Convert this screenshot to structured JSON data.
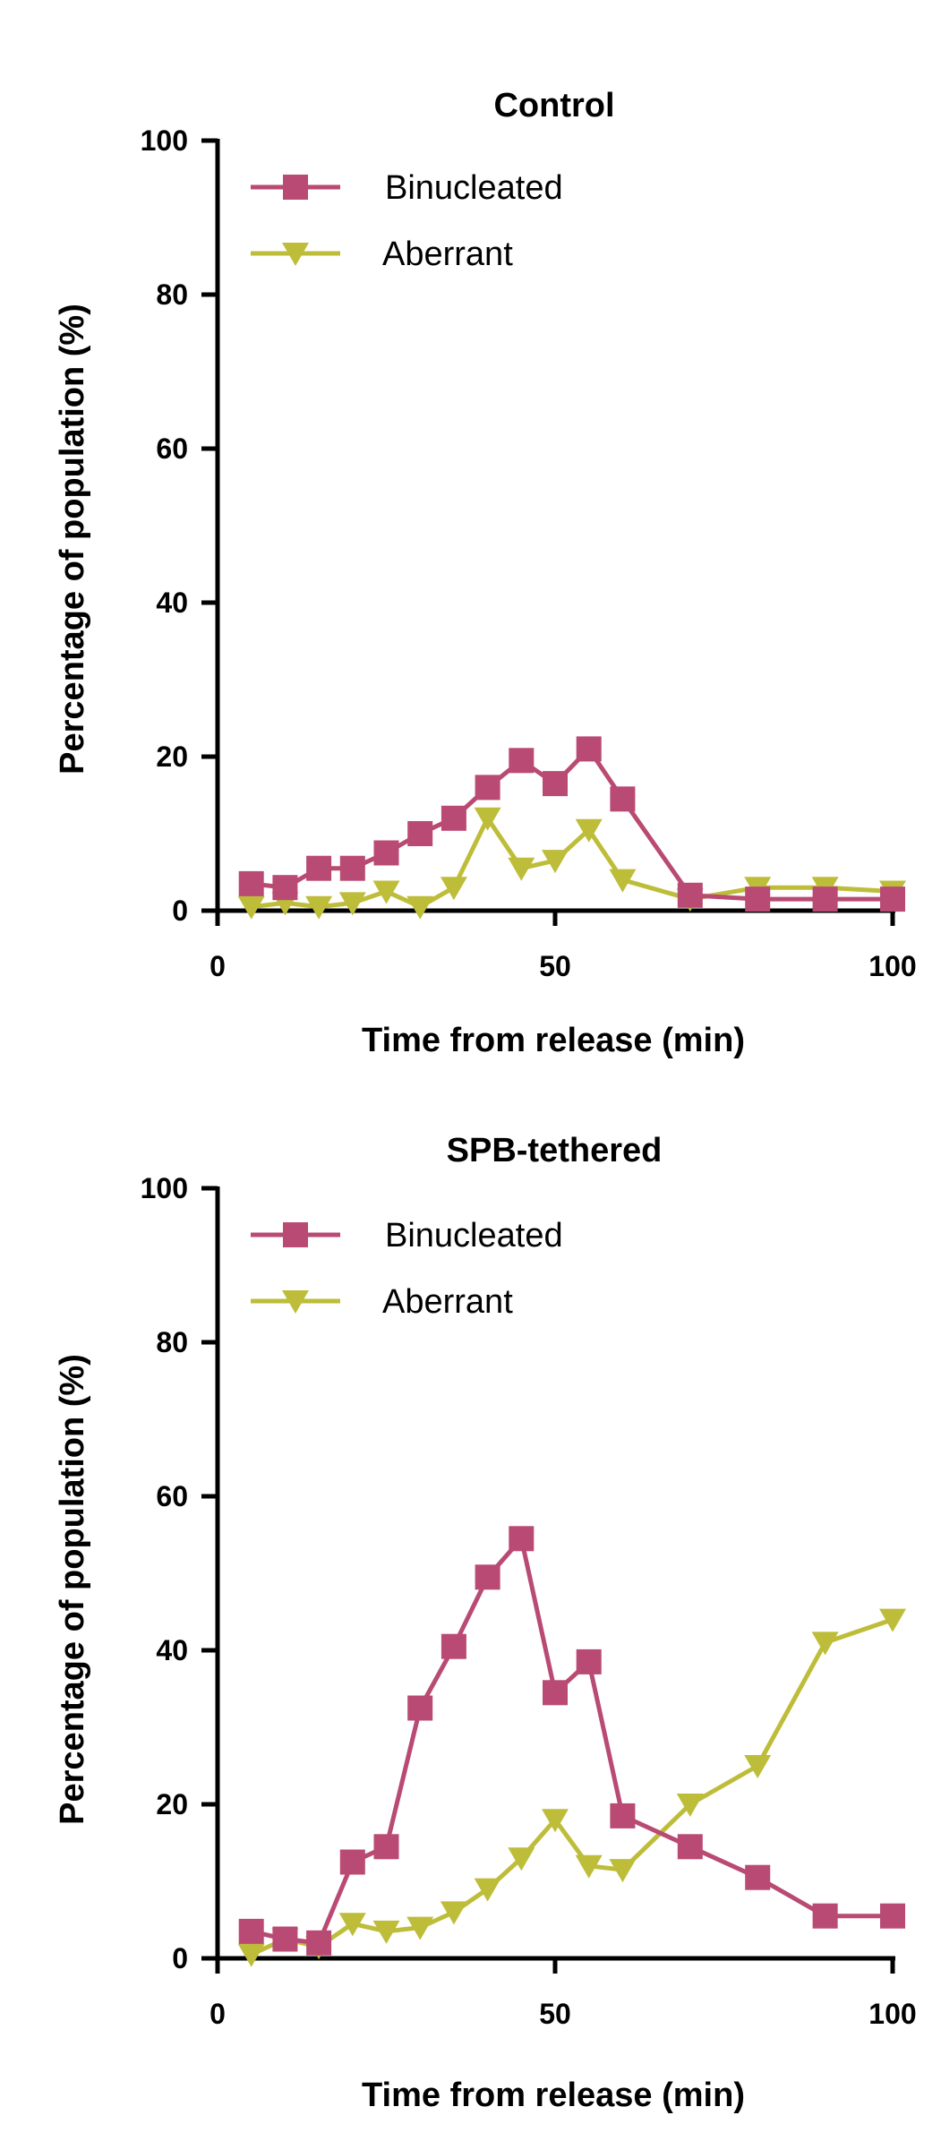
{
  "colors": {
    "binucleated": "#b94a73",
    "aberrant": "#bdbd3a",
    "axis": "#000000"
  },
  "chart_data": [
    {
      "type": "line",
      "title": "Control",
      "xlabel": "Time from release (min)",
      "ylabel": "Percentage of population (%)",
      "xlim": [
        0,
        100
      ],
      "ylim": [
        0,
        100
      ],
      "xticks": [
        0,
        50,
        100
      ],
      "yticks": [
        0,
        20,
        40,
        60,
        80,
        100
      ],
      "grid": false,
      "legend_position": "top-left",
      "series": [
        {
          "name": "Binucleated",
          "marker": "square",
          "color": "#b94a73",
          "x": [
            5,
            10,
            15,
            20,
            25,
            30,
            35,
            40,
            45,
            50,
            55,
            60,
            70,
            80,
            90,
            100
          ],
          "y": [
            3.5,
            3,
            5.5,
            5.5,
            7.5,
            10,
            12,
            16,
            19.5,
            16.5,
            21,
            14.5,
            2,
            1.5,
            1.5,
            1.5
          ]
        },
        {
          "name": "Aberrant",
          "marker": "triangle-down",
          "color": "#bdbd3a",
          "x": [
            5,
            10,
            15,
            20,
            25,
            30,
            35,
            40,
            45,
            50,
            55,
            60,
            70,
            80,
            90,
            100
          ],
          "y": [
            0.5,
            1,
            0.5,
            1,
            2.5,
            0.5,
            3,
            12,
            5.5,
            6.5,
            10.5,
            4,
            1.5,
            3,
            3,
            2.5
          ]
        }
      ]
    },
    {
      "type": "line",
      "title": "SPB-tethered",
      "xlabel": "Time from release (min)",
      "ylabel": "Percentage of population (%)",
      "xlim": [
        0,
        100
      ],
      "ylim": [
        0,
        100
      ],
      "xticks": [
        0,
        50,
        100
      ],
      "yticks": [
        0,
        20,
        40,
        60,
        80,
        100
      ],
      "grid": false,
      "legend_position": "top-left",
      "series": [
        {
          "name": "Binucleated",
          "marker": "square",
          "color": "#b94a73",
          "x": [
            5,
            10,
            15,
            20,
            25,
            30,
            35,
            40,
            45,
            50,
            55,
            60,
            70,
            80,
            90,
            100
          ],
          "y": [
            3.5,
            2.5,
            2,
            12.5,
            14.5,
            32.5,
            40.5,
            49.5,
            54.5,
            34.5,
            38.5,
            18.5,
            14.5,
            10.5,
            5.5,
            5.5
          ]
        },
        {
          "name": "Aberrant",
          "marker": "triangle-down",
          "color": "#bdbd3a",
          "x": [
            5,
            10,
            15,
            20,
            25,
            30,
            35,
            40,
            45,
            50,
            55,
            60,
            70,
            80,
            90,
            100
          ],
          "y": [
            0.5,
            2.5,
            1.5,
            4.5,
            3.5,
            4,
            6,
            9,
            13,
            18,
            12,
            11.5,
            20,
            25,
            41,
            44
          ]
        }
      ]
    }
  ]
}
